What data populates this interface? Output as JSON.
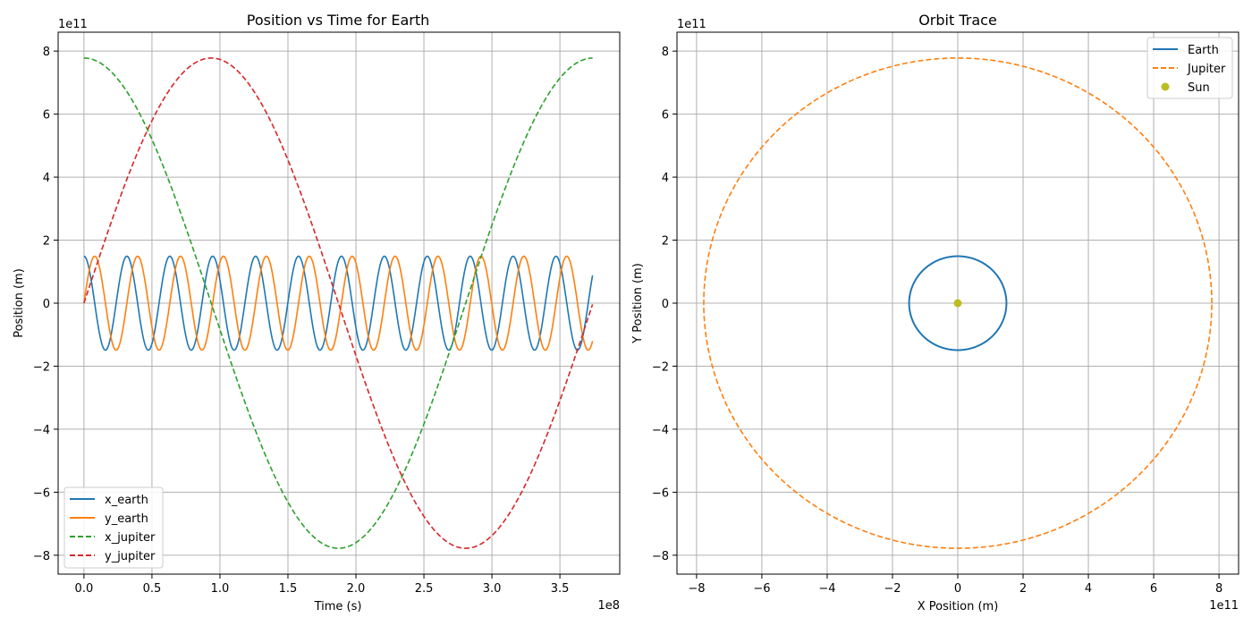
{
  "chart_data": [
    {
      "type": "line",
      "title": "Position vs Time for Earth",
      "xlabel": "Time (s)",
      "ylabel": "Position (m)",
      "x_offset_label": "1e8",
      "y_offset_label": "1e11",
      "xlim": [
        -0.19,
        3.94
      ],
      "ylim": [
        -8.6,
        8.6
      ],
      "xticks": [
        "0.0",
        "0.5",
        "1.0",
        "1.5",
        "2.0",
        "2.5",
        "3.0",
        "3.5"
      ],
      "yticks": [
        "−8",
        "−6",
        "−4",
        "−2",
        "0",
        "2",
        "4",
        "6",
        "8"
      ],
      "grid": true,
      "legend_position": "lower-left",
      "x_units": "1e8 s",
      "y_units": "1e11 m",
      "series": [
        {
          "name": "x_earth",
          "color": "#1f77b4",
          "dash": "solid",
          "amplitude": 1.49,
          "period": 0.3156,
          "phase": "cos",
          "t_end": 3.74
        },
        {
          "name": "y_earth",
          "color": "#ff7f0e",
          "dash": "solid",
          "amplitude": 1.49,
          "period": 0.3156,
          "phase": "sin",
          "t_end": 3.74
        },
        {
          "name": "x_jupiter",
          "color": "#2ca02c",
          "dash": "dashed",
          "amplitude": 7.78,
          "period": 3.743,
          "phase": "cos",
          "t_end": 3.74
        },
        {
          "name": "y_jupiter",
          "color": "#d62728",
          "dash": "dashed",
          "amplitude": 7.78,
          "period": 3.743,
          "phase": "sin",
          "t_end": 3.74
        }
      ]
    },
    {
      "type": "line",
      "title": "Orbit Trace",
      "xlabel": "X Position (m)",
      "ylabel": "Y Position (m)",
      "x_offset_label": "1e11",
      "y_offset_label": "1e11",
      "xlim": [
        -8.6,
        8.6
      ],
      "ylim": [
        -8.6,
        8.6
      ],
      "xticks": [
        "−8",
        "−6",
        "−4",
        "−2",
        "0",
        "2",
        "4",
        "6",
        "8"
      ],
      "yticks": [
        "−8",
        "−6",
        "−4",
        "−2",
        "0",
        "2",
        "4",
        "6",
        "8"
      ],
      "grid": true,
      "legend_position": "top-right",
      "units": "1e11 m",
      "series": [
        {
          "name": "Earth",
          "color": "#1f77b4",
          "dash": "solid",
          "radius": 1.49
        },
        {
          "name": "Jupiter",
          "color": "#ff7f0e",
          "dash": "dashed",
          "radius": 7.78
        },
        {
          "name": "Sun",
          "color": "#bcbd22",
          "marker": "point",
          "x": 0,
          "y": 0
        }
      ]
    }
  ]
}
